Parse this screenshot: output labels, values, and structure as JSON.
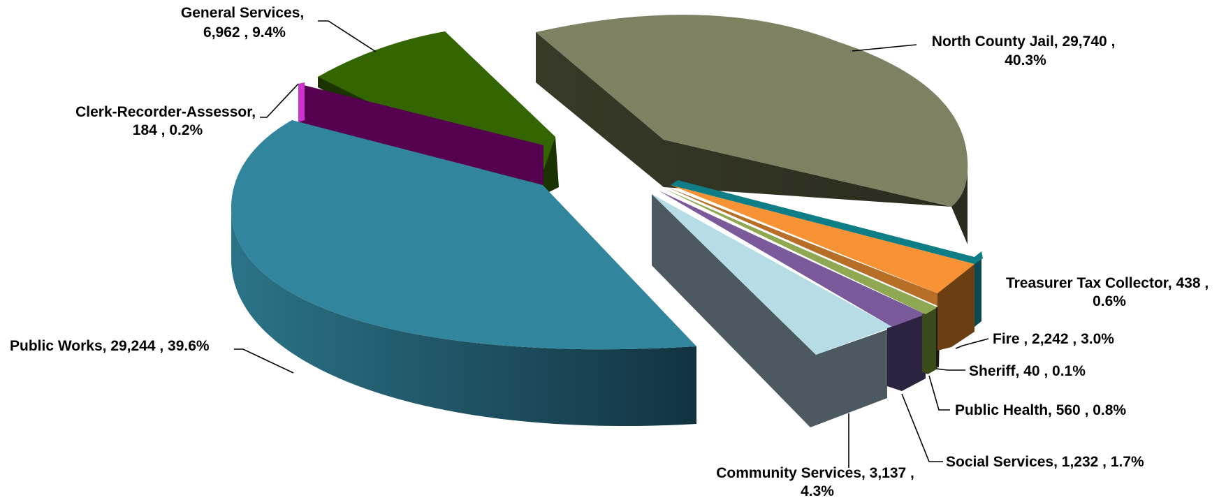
{
  "chart_data": {
    "type": "pie",
    "three_d": true,
    "exploded": true,
    "title": "",
    "legend": "none",
    "slices": [
      {
        "name": "North County Jail",
        "value": 29740,
        "value_text": "29,740",
        "percent": 40.3,
        "percent_text": "40.3%",
        "color": "#7e8262",
        "label_lines": [
          "North County Jail,  29,740 ,",
          "40.3%"
        ]
      },
      {
        "name": "Treasurer Tax Collector",
        "value": 438,
        "value_text": "438",
        "percent": 0.6,
        "percent_text": "0.6%",
        "color": "#0e7d85",
        "label_lines": [
          "Treasurer Tax Collector,  438 ,",
          "0.6%"
        ]
      },
      {
        "name": "Fire",
        "value": 2242,
        "value_text": "2,242",
        "percent": 3.0,
        "percent_text": "3.0%",
        "color": "#f79334",
        "label_lines": [
          "Fire ,  2,242 , 3.0%"
        ]
      },
      {
        "name": "Sheriff",
        "value": 40,
        "value_text": "40",
        "percent": 0.1,
        "percent_text": "0.1%",
        "color": "#b76e27",
        "label_lines": [
          "Sheriff,  40 , 0.1%"
        ]
      },
      {
        "name": "Public Health",
        "value": 560,
        "value_text": "560",
        "percent": 0.8,
        "percent_text": "0.8%",
        "color": "#8fa852",
        "label_lines": [
          "Public Health,  560 , 0.8%"
        ]
      },
      {
        "name": "Social Services",
        "value": 1232,
        "value_text": "1,232",
        "percent": 1.7,
        "percent_text": "1.7%",
        "color": "#7a5a9a",
        "label_lines": [
          "Social Services,  1,232 , 1.7%"
        ]
      },
      {
        "name": "Community Services",
        "value": 3137,
        "value_text": "3,137",
        "percent": 4.3,
        "percent_text": "4.3%",
        "color": "#b6dde6",
        "label_lines": [
          "Community Services,  3,137 ,",
          "4.3%"
        ]
      },
      {
        "name": "Public Works",
        "value": 29244,
        "value_text": "29,244",
        "percent": 39.6,
        "percent_text": "39.6%",
        "color": "#31859c",
        "label_lines": [
          "Public Works,  29,244 , 39.6%"
        ]
      },
      {
        "name": "Clerk-Recorder-Assessor",
        "value": 184,
        "value_text": "184",
        "percent": 0.2,
        "percent_text": "0.2%",
        "color": "#5b0054",
        "label_lines": [
          "Clerk-Recorder-Assessor,",
          "184 , 0.2%"
        ]
      },
      {
        "name": "General Services",
        "value": 6962,
        "value_text": "6,962",
        "percent": 9.4,
        "percent_text": "9.4%",
        "color": "#336600",
        "label_lines": [
          "General Services,",
          "6,962 , 9.4%"
        ]
      }
    ]
  }
}
